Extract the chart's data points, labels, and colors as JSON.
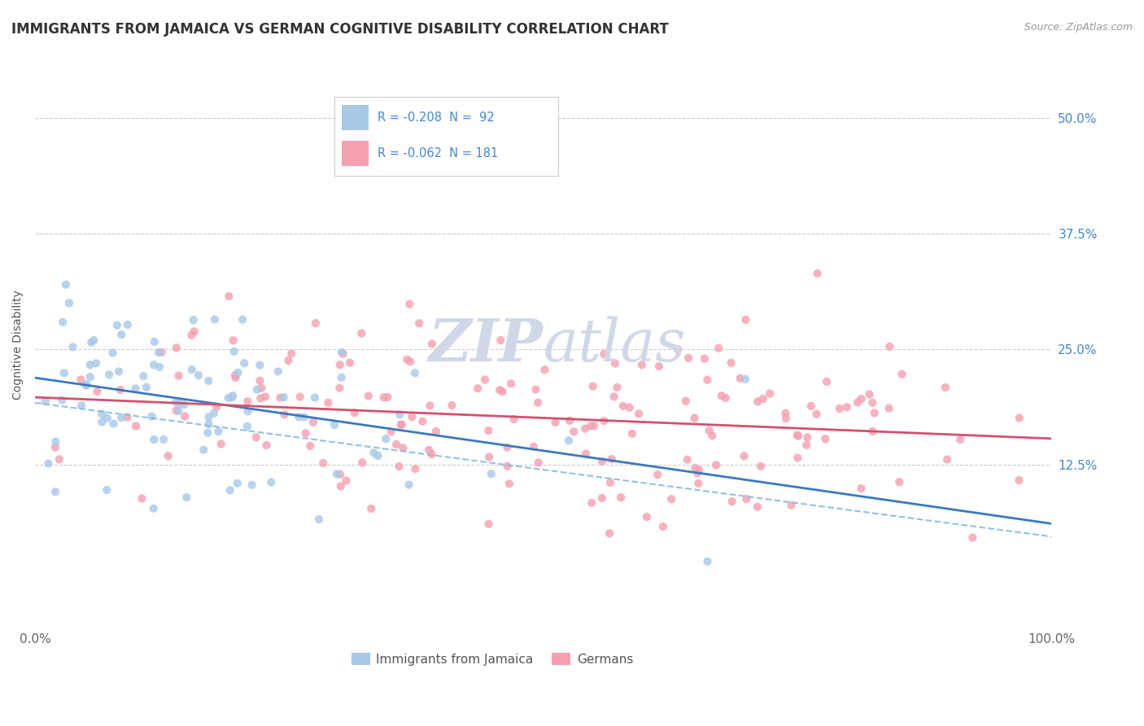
{
  "title": "IMMIGRANTS FROM JAMAICA VS GERMAN COGNITIVE DISABILITY CORRELATION CHART",
  "source": "Source: ZipAtlas.com",
  "ylabel": "Cognitive Disability",
  "xlim": [
    0.0,
    1.0
  ],
  "ylim": [
    -0.05,
    0.56
  ],
  "yticks": [
    0.125,
    0.25,
    0.375,
    0.5
  ],
  "ytick_labels": [
    "12.5%",
    "25.0%",
    "37.5%",
    "50.0%"
  ],
  "blue_scatter_color": "#a8c8e8",
  "pink_scatter_color": "#f4a0b0",
  "legend_R1": "R = -0.208",
  "legend_N1": "N =  92",
  "legend_R2": "R = -0.062",
  "legend_N2": "N = 181",
  "legend_label1": "Immigrants from Jamaica",
  "legend_label2": "Germans",
  "R1": -0.208,
  "N1": 92,
  "R2": -0.062,
  "N2": 181,
  "seed": 42,
  "blue_line_color": "#3a7abf",
  "pink_line_color": "#d45070",
  "dashed_line_color": "#88bbdd",
  "title_fontsize": 12,
  "axis_label_fontsize": 10,
  "tick_fontsize": 11,
  "legend_text_color": "#4488cc",
  "ytick_color": "#4488cc",
  "watermark_color": "#d0d8e8"
}
